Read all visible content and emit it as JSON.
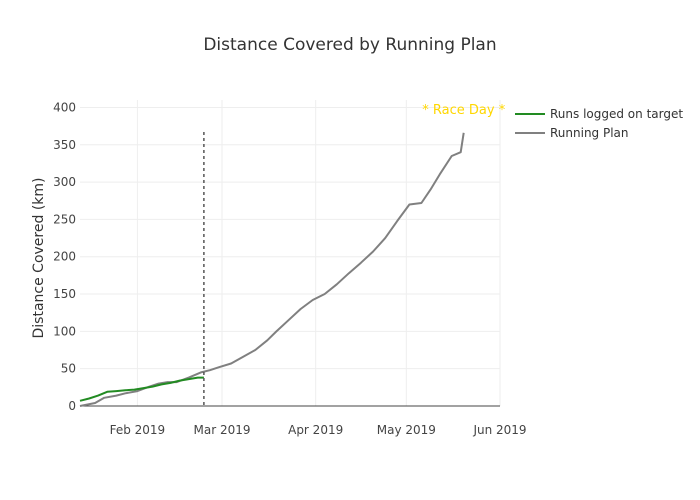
{
  "chart_data": {
    "type": "line",
    "title": "Distance Covered by Running Plan",
    "xlabel": "",
    "ylabel": "Distance Covered (km)",
    "xlim": [
      "2019-01-13",
      "2019-06-01"
    ],
    "ylim": [
      0,
      410
    ],
    "grid": true,
    "legend_position": "top-right",
    "x_ticks": [
      {
        "date": "2019-02-01",
        "label": "Feb 2019"
      },
      {
        "date": "2019-03-01",
        "label": "Mar 2019"
      },
      {
        "date": "2019-04-01",
        "label": "Apr 2019"
      },
      {
        "date": "2019-05-01",
        "label": "May 2019"
      },
      {
        "date": "2019-06-01",
        "label": "Jun 2019"
      }
    ],
    "y_ticks": [
      0,
      50,
      100,
      150,
      200,
      250,
      300,
      350,
      400
    ],
    "series": [
      {
        "name": "Runs logged on target",
        "color": "#228b22",
        "x": [
          "2019-01-13",
          "2019-01-16",
          "2019-01-19",
          "2019-01-22",
          "2019-01-25",
          "2019-01-28",
          "2019-01-31",
          "2019-02-03",
          "2019-02-06",
          "2019-02-09",
          "2019-02-12",
          "2019-02-15",
          "2019-02-18",
          "2019-02-21",
          "2019-02-23"
        ],
        "y": [
          7,
          10,
          14,
          19,
          20,
          21,
          22,
          24,
          26,
          29,
          31,
          34,
          36,
          38,
          38
        ]
      },
      {
        "name": "Running Plan",
        "color": "#808080",
        "x": [
          "2019-01-13",
          "2019-01-18",
          "2019-01-21",
          "2019-01-25",
          "2019-01-28",
          "2019-02-01",
          "2019-02-05",
          "2019-02-08",
          "2019-02-11",
          "2019-02-14",
          "2019-02-18",
          "2019-02-22",
          "2019-02-25",
          "2019-02-28",
          "2019-03-04",
          "2019-03-08",
          "2019-03-12",
          "2019-03-16",
          "2019-03-19",
          "2019-03-23",
          "2019-03-27",
          "2019-03-31",
          "2019-04-04",
          "2019-04-08",
          "2019-04-12",
          "2019-04-16",
          "2019-04-20",
          "2019-04-24",
          "2019-04-28",
          "2019-05-02",
          "2019-05-06",
          "2019-05-09",
          "2019-05-12",
          "2019-05-16",
          "2019-05-19",
          "2019-05-20"
        ],
        "y": [
          0,
          4,
          11,
          14,
          17,
          20,
          26,
          30,
          32,
          32,
          38,
          45,
          48,
          52,
          57,
          66,
          75,
          88,
          100,
          115,
          130,
          142,
          150,
          163,
          178,
          192,
          207,
          225,
          248,
          270,
          272,
          290,
          310,
          335,
          340,
          366
        ]
      }
    ],
    "race_day": {
      "date": "2019-05-20",
      "label": "* Race Day *",
      "color": "#ffd700"
    },
    "current_date_marker": {
      "date": "2019-02-23",
      "style": "dotted"
    }
  }
}
